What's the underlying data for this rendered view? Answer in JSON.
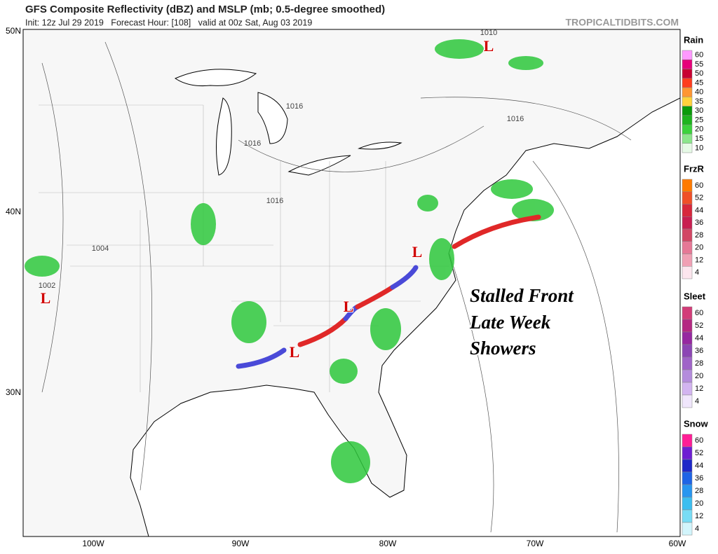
{
  "header": {
    "title": "GFS Composite Reflectivity (dBZ) and MSLP (mb; 0.5-degree smoothed)",
    "subtitle": "Init: 12z Jul 29 2019   Forecast Hour: [108]   valid at 00z Sat, Aug 03 2019",
    "site": "TROPICALTIDBITS.COM"
  },
  "axes": {
    "lat_labels": [
      "50N",
      "40N",
      "30N"
    ],
    "lon_labels": [
      "100W",
      "90W",
      "80W",
      "70W",
      "60W"
    ]
  },
  "map": {
    "pressure_labels": [
      "1010",
      "1002",
      "1004",
      "1016",
      "1016",
      "1016",
      "1016"
    ],
    "lows": [
      "L",
      "L",
      "L",
      "L",
      "L"
    ],
    "annotation": [
      "Stalled Front",
      "Late Week",
      "Showers"
    ]
  },
  "legends": [
    {
      "title": "Rain",
      "levels": [
        {
          "label": "60",
          "color": "#ff99ff"
        },
        {
          "label": "55",
          "color": "#e6007a"
        },
        {
          "label": "50",
          "color": "#c80032"
        },
        {
          "label": "45",
          "color": "#ff3c1e"
        },
        {
          "label": "40",
          "color": "#ff9632"
        },
        {
          "label": "35",
          "color": "#ffd23c"
        },
        {
          "label": "30",
          "color": "#0a9a0a"
        },
        {
          "label": "25",
          "color": "#1eb41e"
        },
        {
          "label": "20",
          "color": "#3cd23c"
        },
        {
          "label": "15",
          "color": "#8ce68c"
        },
        {
          "label": "10",
          "color": "#e6fae6"
        }
      ]
    },
    {
      "title": "FrzR",
      "levels": [
        {
          "label": "60",
          "color": "#ff7a00"
        },
        {
          "label": "52",
          "color": "#f05028"
        },
        {
          "label": "44",
          "color": "#d7283c"
        },
        {
          "label": "36",
          "color": "#c81e50"
        },
        {
          "label": "28",
          "color": "#d24664"
        },
        {
          "label": "20",
          "color": "#e67896"
        },
        {
          "label": "12",
          "color": "#f0a0b4"
        },
        {
          "label": "4",
          "color": "#fce6ee"
        }
      ]
    },
    {
      "title": "Sleet",
      "levels": [
        {
          "label": "60",
          "color": "#d23c78"
        },
        {
          "label": "52",
          "color": "#b42882"
        },
        {
          "label": "44",
          "color": "#9628a0"
        },
        {
          "label": "36",
          "color": "#8c46b4"
        },
        {
          "label": "28",
          "color": "#a064c8"
        },
        {
          "label": "20",
          "color": "#b48cdc"
        },
        {
          "label": "12",
          "color": "#d2b4f0"
        },
        {
          "label": "4",
          "color": "#f0e6fc"
        }
      ]
    },
    {
      "title": "Snow",
      "levels": [
        {
          "label": "60",
          "color": "#ff1e96"
        },
        {
          "label": "52",
          "color": "#6e1ed2"
        },
        {
          "label": "44",
          "color": "#1e28c8"
        },
        {
          "label": "36",
          "color": "#1e64e6"
        },
        {
          "label": "28",
          "color": "#2896f0"
        },
        {
          "label": "20",
          "color": "#3cbef0"
        },
        {
          "label": "12",
          "color": "#78dcf5"
        },
        {
          "label": "4",
          "color": "#d2f5fc"
        }
      ]
    }
  ]
}
